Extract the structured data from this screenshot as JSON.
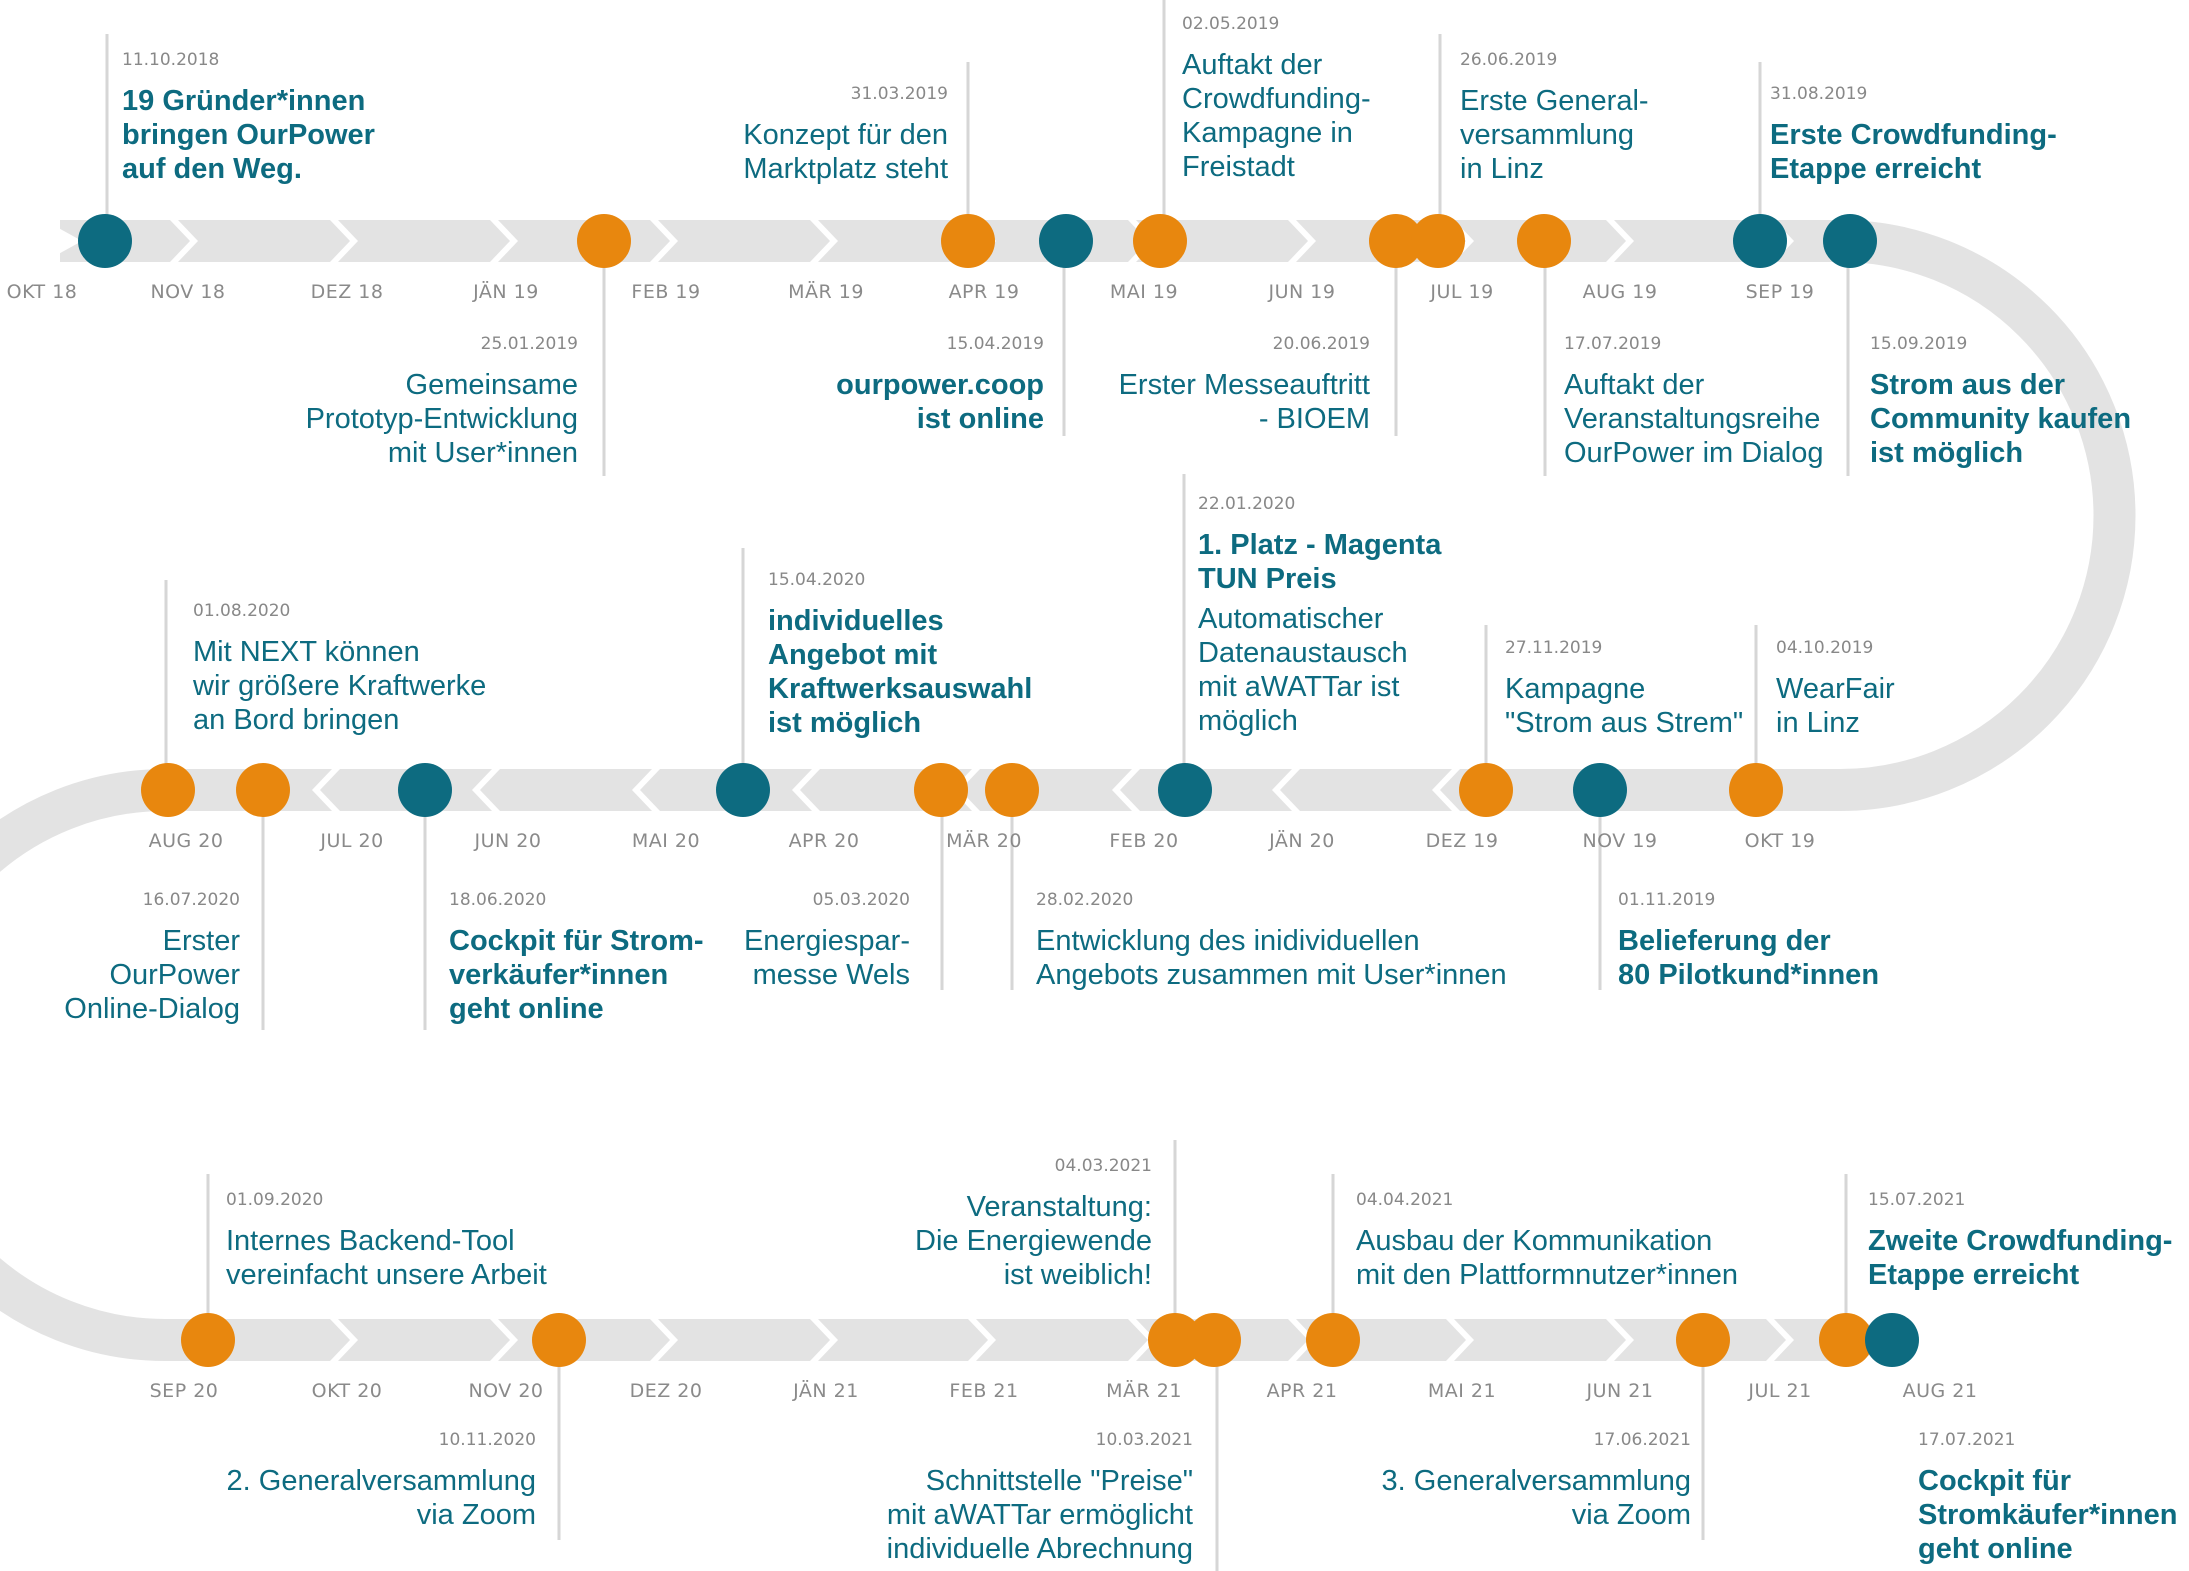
{
  "colors": {
    "orange": "#e8870e",
    "blue": "#0d6b80",
    "track": "#e3e3e3",
    "connector": "#d6d6d6",
    "date": "#888888",
    "month": "#8a8a8a"
  },
  "row1_months": [
    "OKT 18",
    "NOV 18",
    "DEZ 18",
    "JÄN 19",
    "FEB 19",
    "MÄR 19",
    "APR 19",
    "MAI 19",
    "JUN 19",
    "JUL 19",
    "AUG 19",
    "SEP 19"
  ],
  "row2_months": [
    "AUG 20",
    "JUL 20",
    "JUN 20",
    "MAI 20",
    "APR 20",
    "MÄR 20",
    "FEB 20",
    "JÄN 20",
    "DEZ 19",
    "NOV 19",
    "OKT 19"
  ],
  "row3_months": [
    "SEP 20",
    "OKT 20",
    "NOV 20",
    "DEZ 20",
    "JÄN 21",
    "FEB 21",
    "MÄR 21",
    "APR 21",
    "MAI 21",
    "JUN 21",
    "JUL 21",
    "AUG 21"
  ],
  "events": [
    {
      "date": "11.10.2018",
      "lines": [
        "19 Gründer*innen",
        "bringen OurPower",
        "auf den Weg."
      ],
      "bold": true
    },
    {
      "date": "31.03.2019",
      "lines": [
        "Konzept für den",
        "Marktplatz steht"
      ],
      "bold": false
    },
    {
      "date": "02.05.2019",
      "lines": [
        "Auftakt der",
        "Crowdfunding-",
        "Kampagne in",
        "Freistadt"
      ],
      "bold": false
    },
    {
      "date": "26.06.2019",
      "lines": [
        "Erste General-",
        "versammlung",
        "in Linz"
      ],
      "bold": false
    },
    {
      "date": "31.08.2019",
      "lines": [
        "Erste Crowdfunding-",
        "Etappe erreicht"
      ],
      "bold": true
    },
    {
      "date": "25.01.2019",
      "lines": [
        "Gemeinsame",
        "Prototyp-Entwicklung",
        "mit User*innen"
      ],
      "bold": false
    },
    {
      "date": "15.04.2019",
      "lines": [
        "ourpower.coop",
        "ist online"
      ],
      "bold": true
    },
    {
      "date": "20.06.2019",
      "lines": [
        "Erster Messeauftritt",
        "- BIOEM"
      ],
      "bold": false
    },
    {
      "date": "17.07.2019",
      "lines": [
        "Auftakt der",
        "Veranstaltungsreihe",
        "OurPower im Dialog"
      ],
      "bold": false
    },
    {
      "date": "15.09.2019",
      "lines": [
        "Strom aus der",
        "Community kaufen",
        "ist möglich"
      ],
      "bold": true
    },
    {
      "date": "01.08.2020",
      "lines": [
        "Mit NEXT können",
        "wir größere Kraftwerke",
        "an Bord bringen"
      ],
      "bold": false
    },
    {
      "date": "15.04.2020",
      "lines": [
        "individuelles",
        "Angebot mit",
        "Kraftwerksauswahl",
        "ist möglich"
      ],
      "bold": true
    },
    {
      "date": "22.01.2020",
      "lines": [
        "1. Platz - Magenta",
        "TUN Preis"
      ],
      "bold": true,
      "extra_lines": [
        "Automatischer",
        "Datenaustausch",
        "mit aWATTar ist",
        "möglich"
      ]
    },
    {
      "date": "27.11.2019",
      "lines": [
        "Kampagne",
        "\"Strom aus Strem\""
      ],
      "bold": false
    },
    {
      "date": "04.10.2019",
      "lines": [
        "WearFair",
        "in Linz"
      ],
      "bold": false
    },
    {
      "date": "16.07.2020",
      "lines": [
        "Erster",
        "OurPower",
        "Online-Dialog"
      ],
      "bold": false
    },
    {
      "date": "18.06.2020",
      "lines": [
        "Cockpit für Strom-",
        "verkäufer*innen",
        "geht online"
      ],
      "bold": true
    },
    {
      "date": "05.03.2020",
      "lines": [
        "Energiespar-",
        "messe Wels"
      ],
      "bold": false
    },
    {
      "date": "28.02.2020",
      "lines": [
        "Entwicklung des inidividuellen",
        "Angebots zusammen mit User*innen"
      ],
      "bold": false
    },
    {
      "date": "01.11.2019",
      "lines": [
        "Belieferung der",
        "80 Pilotkund*innen"
      ],
      "bold": true
    },
    {
      "date": "01.09.2020",
      "lines": [
        "Internes Backend-Tool",
        "vereinfacht unsere Arbeit"
      ],
      "bold": false
    },
    {
      "date": "04.03.2021",
      "lines": [
        "Veranstaltung:",
        "Die Energiewende",
        "ist weiblich!"
      ],
      "bold": false
    },
    {
      "date": "04.04.2021",
      "lines": [
        "Ausbau der Kommunikation",
        "mit den Plattformnutzer*innen"
      ],
      "bold": false
    },
    {
      "date": "15.07.2021",
      "lines": [
        "Zweite Crowdfunding-",
        "Etappe erreicht"
      ],
      "bold": true
    },
    {
      "date": "10.11.2020",
      "lines": [
        "2. Generalversammlung",
        "via Zoom"
      ],
      "bold": false
    },
    {
      "date": "10.03.2021",
      "lines": [
        "Schnittstelle \"Preise\"",
        "mit aWATTar ermöglicht",
        "individuelle Abrechnung"
      ],
      "bold": false
    },
    {
      "date": "17.06.2021",
      "lines": [
        "3. Generalversammlung",
        "via Zoom"
      ],
      "bold": false
    },
    {
      "date": "17.07.2021",
      "lines": [
        "Cockpit für",
        "Stromkäufer*innen",
        "geht online"
      ],
      "bold": true
    }
  ],
  "markers": [
    {
      "color": "blue"
    },
    {
      "color": "orange"
    },
    {
      "color": "orange"
    },
    {
      "color": "blue"
    },
    {
      "color": "orange"
    },
    {
      "color": "orange"
    },
    {
      "color": "orange"
    },
    {
      "color": "orange"
    },
    {
      "color": "blue"
    },
    {
      "color": "blue"
    },
    {
      "color": "orange"
    },
    {
      "color": "orange"
    },
    {
      "color": "blue"
    },
    {
      "color": "blue"
    },
    {
      "color": "orange"
    },
    {
      "color": "orange"
    },
    {
      "color": "blue"
    },
    {
      "color": "orange"
    },
    {
      "color": "blue"
    },
    {
      "color": "orange"
    },
    {
      "color": "orange"
    },
    {
      "color": "orange"
    },
    {
      "color": "orange"
    },
    {
      "color": "orange"
    },
    {
      "color": "orange"
    },
    {
      "color": "orange"
    },
    {
      "color": "orange"
    },
    {
      "color": "blue"
    }
  ]
}
